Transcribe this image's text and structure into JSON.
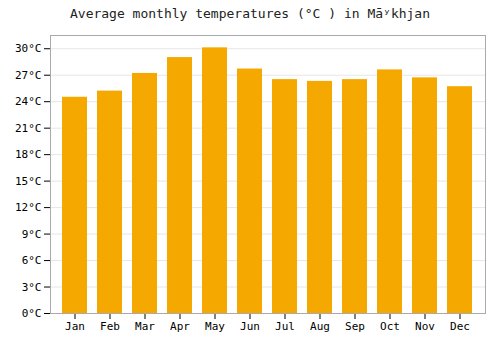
{
  "chart_data": {
    "type": "bar",
    "title": "Average monthly temperatures (°C ) in Māʸkhjan",
    "categories": [
      "Jan",
      "Feb",
      "Mar",
      "Apr",
      "May",
      "Jun",
      "Jul",
      "Aug",
      "Sep",
      "Oct",
      "Nov",
      "Dec"
    ],
    "values": [
      24.5,
      25.2,
      27.2,
      29.0,
      30.1,
      27.7,
      26.5,
      26.3,
      26.5,
      27.6,
      26.7,
      25.7
    ],
    "color": "#F5A800",
    "ylim": [
      0,
      31.5
    ],
    "yticks": [
      {
        "value": 0,
        "label": "0°C"
      },
      {
        "value": 3,
        "label": "3°C"
      },
      {
        "value": 6,
        "label": "6°C"
      },
      {
        "value": 9,
        "label": "9°C"
      },
      {
        "value": 12,
        "label": "12°C"
      },
      {
        "value": 15,
        "label": "15°C"
      },
      {
        "value": 18,
        "label": "18°C"
      },
      {
        "value": 21,
        "label": "21°C"
      },
      {
        "value": 24,
        "label": "24°C"
      },
      {
        "value": 27,
        "label": "27°C"
      },
      {
        "value": 30,
        "label": "30°C"
      }
    ],
    "grid": true
  }
}
